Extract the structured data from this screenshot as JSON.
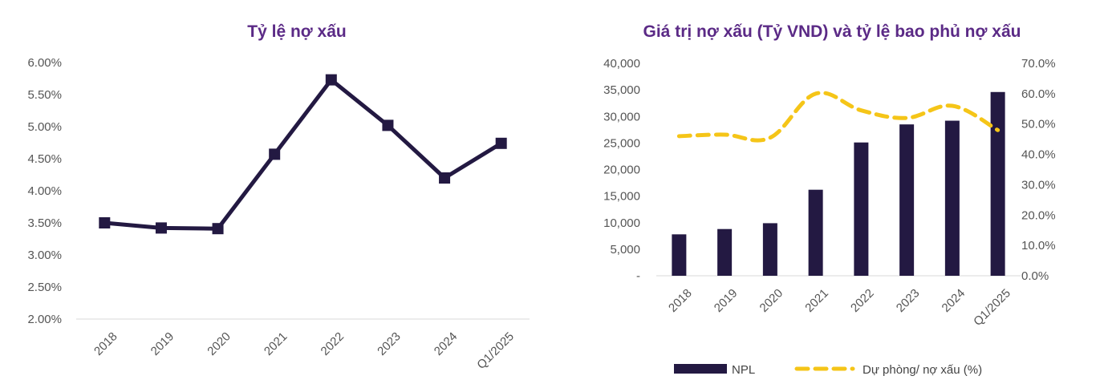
{
  "colors": {
    "npl": "#231942",
    "coverage": "#f5c518",
    "title": "#5b2a86",
    "axis": "#d9d9d9",
    "tick_text": "#555555"
  },
  "chart_data": [
    {
      "type": "line",
      "title": "Tỷ lệ nợ xấu",
      "categories": [
        "2018",
        "2019",
        "2020",
        "2021",
        "2022",
        "2023",
        "2024",
        "Q1/2025"
      ],
      "series": [
        {
          "values": [
            3.5,
            3.42,
            3.41,
            4.57,
            5.73,
            5.02,
            4.2,
            4.74
          ],
          "marker": "square"
        }
      ],
      "ylim": [
        2.0,
        6.0
      ],
      "yticks": [
        "2.00%",
        "2.50%",
        "3.00%",
        "3.50%",
        "4.00%",
        "4.50%",
        "5.00%",
        "5.50%",
        "6.00%"
      ],
      "grid": false
    },
    {
      "type": "bar",
      "title": "Giá trị nợ xấu (Tỷ VND) và tỷ lệ bao phủ nợ xấu",
      "categories": [
        "2018",
        "2019",
        "2020",
        "2021",
        "2022",
        "2023",
        "2024",
        "Q1/2025"
      ],
      "series": [
        {
          "name": "NPL",
          "type": "bar",
          "axis": "left",
          "values": [
            7800,
            8800,
            9900,
            16200,
            25100,
            28500,
            29200,
            34600
          ]
        },
        {
          "name": "Dự phòng/ nợ xấu (%)",
          "type": "line",
          "style": "dashed",
          "axis": "right",
          "values": [
            46.0,
            46.5,
            45.5,
            60.0,
            54.5,
            52.0,
            56.0,
            48.0
          ]
        }
      ],
      "ylim_left": [
        0,
        40000
      ],
      "ylim_right": [
        0,
        70
      ],
      "yticks_left": [
        "-",
        "5,000",
        "10,000",
        "15,000",
        "20,000",
        "25,000",
        "30,000",
        "35,000",
        "40,000"
      ],
      "yticks_right": [
        "0.0%",
        "10.0%",
        "20.0%",
        "30.0%",
        "40.0%",
        "50.0%",
        "60.0%",
        "70.0%"
      ],
      "legend": "bottom",
      "grid": false
    }
  ]
}
